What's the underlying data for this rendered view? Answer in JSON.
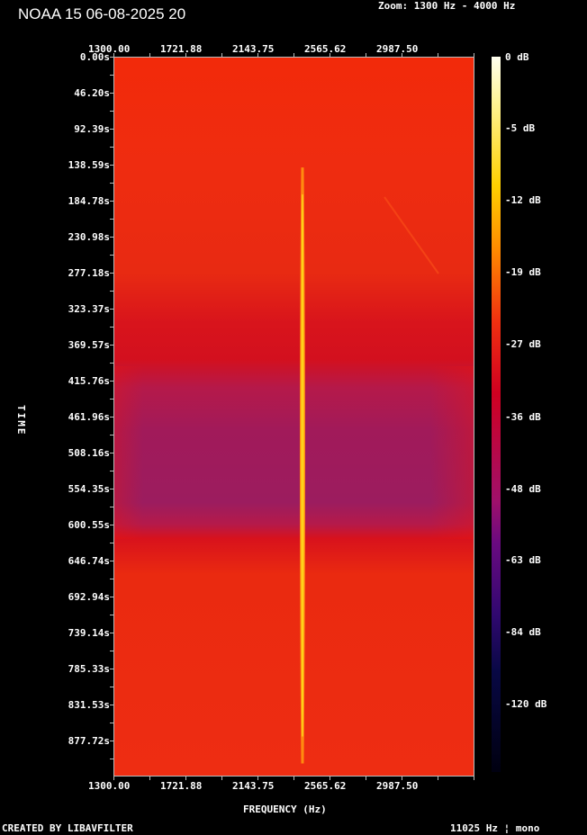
{
  "header": {
    "title": "NOAA 15 06-08-2025 20",
    "zoom": "Zoom: 1300 Hz - 4000 Hz"
  },
  "footer": {
    "created_by": "CREATED BY LIBAVFILTER",
    "rate": "11025 Hz ¦ mono"
  },
  "chart_data": {
    "type": "heatmap",
    "title": "NOAA 15 06-08-2025 20",
    "xlabel": "FREQUENCY (Hz)",
    "ylabel": "TIME",
    "x_ticks": [
      "1300.00",
      "1721.88",
      "2143.75",
      "2565.62",
      "2987.50"
    ],
    "y_ticks": [
      "0.00s",
      "46.20s",
      "92.39s",
      "138.59s",
      "184.78s",
      "230.98s",
      "277.18s",
      "323.37s",
      "369.57s",
      "415.76s",
      "461.96s",
      "508.16s",
      "554.35s",
      "600.55s",
      "646.74s",
      "692.94s",
      "739.14s",
      "785.33s",
      "831.53s",
      "877.72s"
    ],
    "xlim": [
      1300,
      3414.6
    ],
    "ylim": [
      0,
      923.9
    ],
    "colorbar": {
      "labels": [
        "0 dB",
        "-5 dB",
        "-12 dB",
        "-19 dB",
        "-27 dB",
        "-36 dB",
        "-48 dB",
        "-63 dB",
        "-84 dB",
        "-120 dB"
      ],
      "colormap": "fire"
    },
    "signal_trace": {
      "frequency_hz": 2402,
      "start_s": 141,
      "end_s": 906,
      "peak_db": -8
    },
    "background_db": -27,
    "colors": {
      "background": "#ee2d12",
      "signal": "#ffd21a",
      "weak_band": "#9c1c5f"
    }
  }
}
